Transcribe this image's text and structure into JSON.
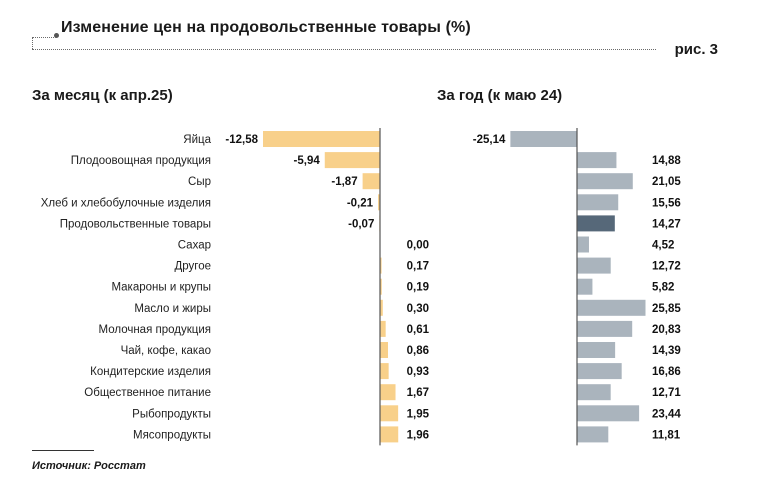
{
  "header": {
    "title": "Изменение цен на продовольственные товары (%)",
    "figure_label": "рис. 3"
  },
  "subtitles": {
    "left": "За месяц (к апр.25)",
    "right": "За год (к маю 24)"
  },
  "source": "Источник: Росстат",
  "colors": {
    "month_bar": "#f8d08a",
    "year_bar": "#aab4bd",
    "year_highlight": "#566879",
    "axis": "#555555"
  },
  "chart_data": [
    {
      "type": "bar",
      "orientation": "horizontal",
      "title": "За месяц (к апр.25)",
      "unit": "%",
      "categories": [
        "Яйца",
        "Плодоовощная продукция",
        "Сыр",
        "Хлеб и хлебобулочные изделия",
        "Продовольственные товары",
        "Сахар",
        "Другое",
        "Макароны и крупы",
        "Масло и жиры",
        "Молочная продукция",
        "Чай, кофе, какао",
        "Кондитерские изделия",
        "Общественное питание",
        "Рыбопродукты",
        "Мясопродукты"
      ],
      "values": [
        -12.58,
        -5.94,
        -1.87,
        -0.21,
        -0.07,
        0.0,
        0.17,
        0.19,
        0.3,
        0.61,
        0.86,
        0.93,
        1.67,
        1.95,
        1.96
      ],
      "labels": [
        "-12,58",
        "-5,94",
        "-1,87",
        "-0,21",
        "-0,07",
        "0,00",
        "0,17",
        "0,19",
        "0,30",
        "0,61",
        "0,86",
        "0,93",
        "1,67",
        "1,95",
        "1,96"
      ]
    },
    {
      "type": "bar",
      "orientation": "horizontal",
      "title": "За год (к маю 24)",
      "unit": "%",
      "categories": [
        "Яйца",
        "Плодоовощная продукция",
        "Сыр",
        "Хлеб и хлебобулочные изделия",
        "Продовольственные товары",
        "Сахар",
        "Другое",
        "Макароны и крупы",
        "Масло и жиры",
        "Молочная продукция",
        "Чай, кофе, какао",
        "Кондитерские изделия",
        "Общественное питание",
        "Рыбопродукты",
        "Мясопродукты"
      ],
      "values": [
        -25.14,
        14.88,
        21.05,
        15.56,
        14.27,
        4.52,
        12.72,
        5.82,
        25.85,
        20.83,
        14.39,
        16.86,
        12.71,
        23.44,
        11.81
      ],
      "labels": [
        "-25,14",
        "14,88",
        "21,05",
        "15,56",
        "14,27",
        "4,52",
        "12,72",
        "5,82",
        "25,85",
        "20,83",
        "14,39",
        "16,86",
        "12,71",
        "23,44",
        "11,81"
      ],
      "highlight_category": "Продовольственные товары"
    }
  ]
}
